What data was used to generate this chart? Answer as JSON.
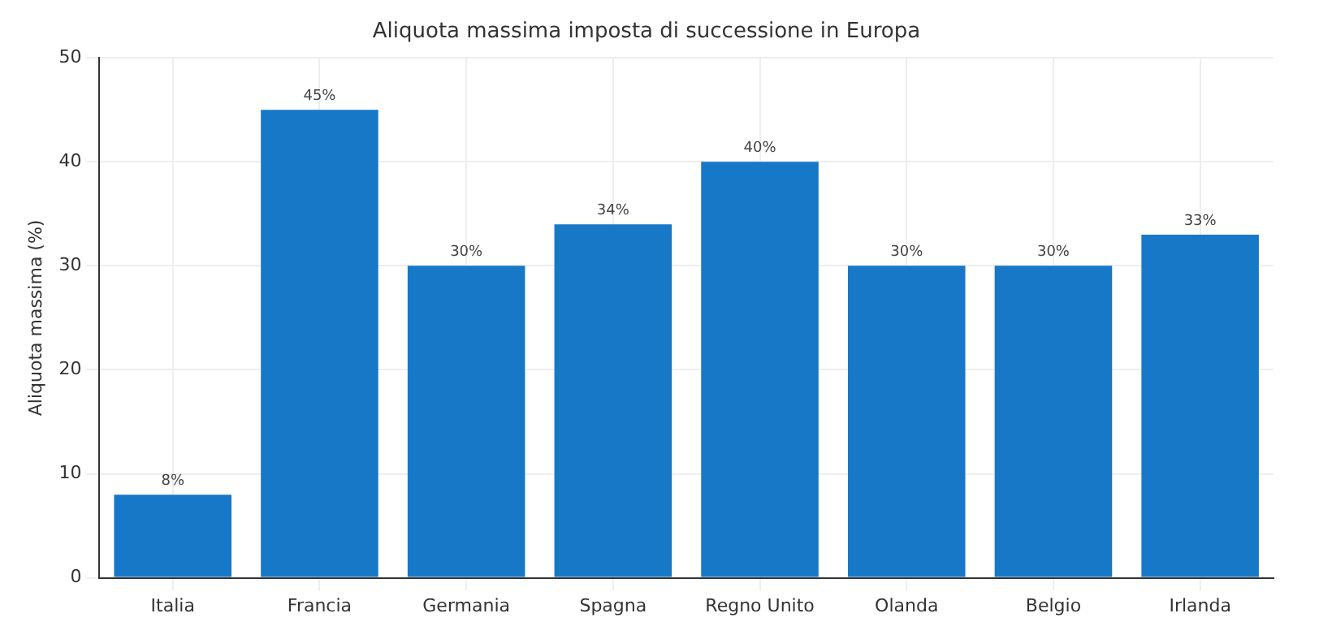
{
  "chart_data": {
    "type": "bar",
    "title": "Aliquota massima imposta di successione in Europa",
    "ylabel": "Aliquota massima (%)",
    "categories": [
      "Italia",
      "Francia",
      "Germania",
      "Spagna",
      "Regno Unito",
      "Olanda",
      "Belgio",
      "Irlanda"
    ],
    "values": [
      8,
      45,
      30,
      34,
      40,
      30,
      30,
      33
    ],
    "value_labels": [
      "8%",
      "45%",
      "30%",
      "34%",
      "40%",
      "30%",
      "30%",
      "33%"
    ],
    "color": "#1778c8",
    "ylim": [
      0,
      50
    ],
    "yticks": [
      0,
      10,
      20,
      30,
      40,
      50
    ],
    "grid": true,
    "legend": false
  }
}
